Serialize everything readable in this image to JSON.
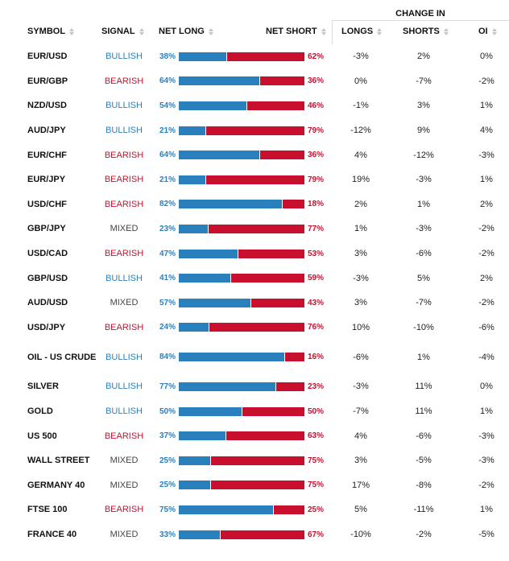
{
  "colors": {
    "long": "#2a80bd",
    "short": "#c8102e",
    "bullish": "#2a80bd",
    "bearish": "#c8102e",
    "mixed": "#444444"
  },
  "header": {
    "change_in": "CHANGE IN",
    "symbol": "SYMBOL",
    "signal": "SIGNAL",
    "net_long": "NET LONG",
    "net_short": "NET SHORT",
    "longs": "LONGS",
    "shorts": "SHORTS",
    "oi": "OI"
  },
  "rows": [
    {
      "symbol": "EUR/USD",
      "signal": "BULLISH",
      "long_pct": "38%",
      "long_value": 38,
      "short_pct": "62%",
      "longs": "-3%",
      "shorts": "2%",
      "oi": "0%"
    },
    {
      "symbol": "EUR/GBP",
      "signal": "BEARISH",
      "long_pct": "64%",
      "long_value": 64,
      "short_pct": "36%",
      "longs": "0%",
      "shorts": "-7%",
      "oi": "-2%"
    },
    {
      "symbol": "NZD/USD",
      "signal": "BULLISH",
      "long_pct": "54%",
      "long_value": 54,
      "short_pct": "46%",
      "longs": "-1%",
      "shorts": "3%",
      "oi": "1%"
    },
    {
      "symbol": "AUD/JPY",
      "signal": "BULLISH",
      "long_pct": "21%",
      "long_value": 21,
      "short_pct": "79%",
      "longs": "-12%",
      "shorts": "9%",
      "oi": "4%"
    },
    {
      "symbol": "EUR/CHF",
      "signal": "BEARISH",
      "long_pct": "64%",
      "long_value": 64,
      "short_pct": "36%",
      "longs": "4%",
      "shorts": "-12%",
      "oi": "-3%"
    },
    {
      "symbol": "EUR/JPY",
      "signal": "BEARISH",
      "long_pct": "21%",
      "long_value": 21,
      "short_pct": "79%",
      "longs": "19%",
      "shorts": "-3%",
      "oi": "1%"
    },
    {
      "symbol": "USD/CHF",
      "signal": "BEARISH",
      "long_pct": "82%",
      "long_value": 82,
      "short_pct": "18%",
      "longs": "2%",
      "shorts": "1%",
      "oi": "2%"
    },
    {
      "symbol": "GBP/JPY",
      "signal": "MIXED",
      "long_pct": "23%",
      "long_value": 23,
      "short_pct": "77%",
      "longs": "1%",
      "shorts": "-3%",
      "oi": "-2%"
    },
    {
      "symbol": "USD/CAD",
      "signal": "BEARISH",
      "long_pct": "47%",
      "long_value": 47,
      "short_pct": "53%",
      "longs": "3%",
      "shorts": "-6%",
      "oi": "-2%"
    },
    {
      "symbol": "GBP/USD",
      "signal": "BULLISH",
      "long_pct": "41%",
      "long_value": 41,
      "short_pct": "59%",
      "longs": "-3%",
      "shorts": "5%",
      "oi": "2%"
    },
    {
      "symbol": "AUD/USD",
      "signal": "MIXED",
      "long_pct": "57%",
      "long_value": 57,
      "short_pct": "43%",
      "longs": "3%",
      "shorts": "-7%",
      "oi": "-2%"
    },
    {
      "symbol": "USD/JPY",
      "signal": "BEARISH",
      "long_pct": "24%",
      "long_value": 24,
      "short_pct": "76%",
      "longs": "10%",
      "shorts": "-10%",
      "oi": "-6%"
    },
    {
      "symbol": "OIL - US CRUDE",
      "signal": "BULLISH",
      "long_pct": "84%",
      "long_value": 84,
      "short_pct": "16%",
      "longs": "-6%",
      "shorts": "1%",
      "oi": "-4%"
    },
    {
      "symbol": "SILVER",
      "signal": "BULLISH",
      "long_pct": "77%",
      "long_value": 77,
      "short_pct": "23%",
      "longs": "-3%",
      "shorts": "11%",
      "oi": "0%"
    },
    {
      "symbol": "GOLD",
      "signal": "BULLISH",
      "long_pct": "50%",
      "long_value": 50,
      "short_pct": "50%",
      "longs": "-7%",
      "shorts": "11%",
      "oi": "1%"
    },
    {
      "symbol": "US 500",
      "signal": "BEARISH",
      "long_pct": "37%",
      "long_value": 37,
      "short_pct": "63%",
      "longs": "4%",
      "shorts": "-6%",
      "oi": "-3%"
    },
    {
      "symbol": "WALL STREET",
      "signal": "MIXED",
      "long_pct": "25%",
      "long_value": 25,
      "short_pct": "75%",
      "longs": "3%",
      "shorts": "-5%",
      "oi": "-3%"
    },
    {
      "symbol": "GERMANY 40",
      "signal": "MIXED",
      "long_pct": "25%",
      "long_value": 25,
      "short_pct": "75%",
      "longs": "17%",
      "shorts": "-8%",
      "oi": "-2%"
    },
    {
      "symbol": "FTSE 100",
      "signal": "BEARISH",
      "long_pct": "75%",
      "long_value": 75,
      "short_pct": "25%",
      "longs": "5%",
      "shorts": "-11%",
      "oi": "1%"
    },
    {
      "symbol": "FRANCE 40",
      "signal": "MIXED",
      "long_pct": "33%",
      "long_value": 33,
      "short_pct": "67%",
      "longs": "-10%",
      "shorts": "-2%",
      "oi": "-5%"
    }
  ]
}
